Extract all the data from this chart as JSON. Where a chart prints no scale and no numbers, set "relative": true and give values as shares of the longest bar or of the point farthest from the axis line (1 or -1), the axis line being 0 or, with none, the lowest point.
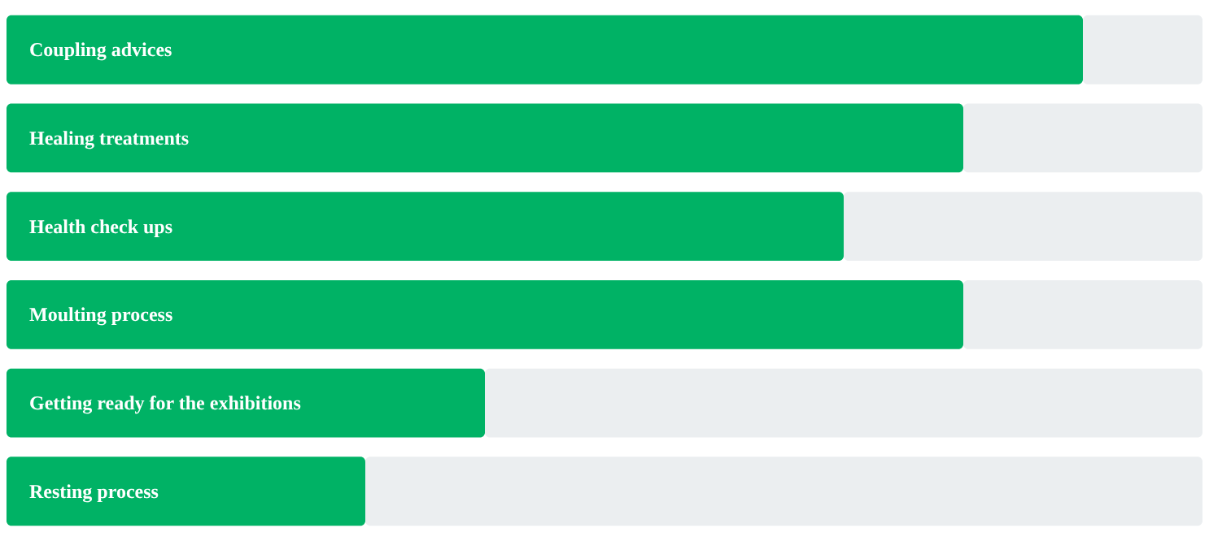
{
  "chart_data": {
    "type": "bar",
    "orientation": "horizontal",
    "stacked": true,
    "relative": true,
    "legend": false,
    "categories": [
      "Coupling advices",
      "Healing treatments",
      "Health check ups",
      "Moulting process",
      "Getting ready for the exhibitions",
      "Resting process"
    ],
    "series": [
      {
        "color": "#00b265",
        "values": [
          0.9,
          0.8,
          0.7,
          0.8,
          0.4,
          0.3
        ]
      },
      {
        "color": "#ebeef0",
        "values": [
          0.1,
          0.2,
          0.3,
          0.2,
          0.6,
          0.7
        ]
      }
    ]
  }
}
